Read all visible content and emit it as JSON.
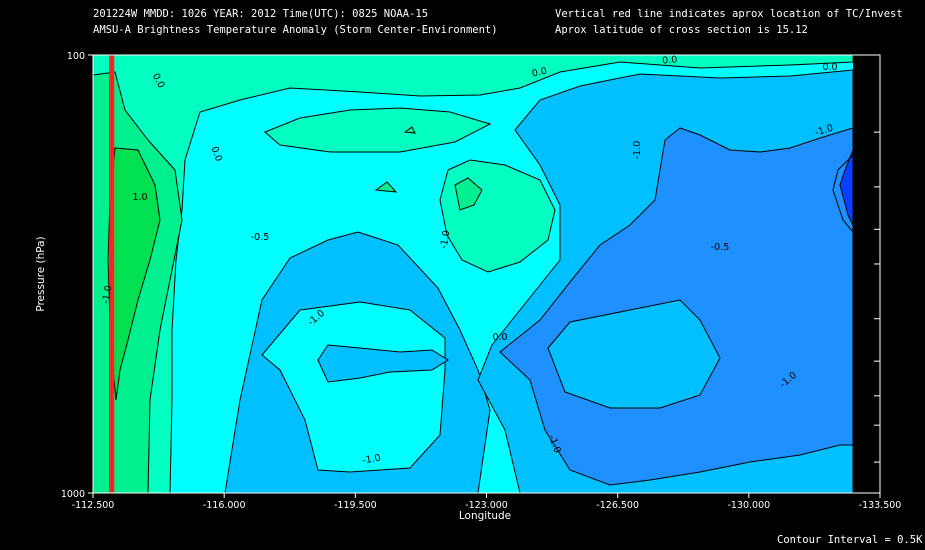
{
  "header": {
    "line1": "201224W  MMDD: 1026 YEAR: 2012 Time(UTC): 0825 NOAA-15",
    "line2": "AMSU-A Brightness Temperature Anomaly (Storm Center-Environment)",
    "right1": "Vertical red line indicates aprox location of TC/Invest",
    "right2": "Aprox latitude of cross section is 15.12"
  },
  "footer": {
    "contour_interval": "Contour Interval = 0.5K"
  },
  "chart_data": {
    "type": "heatmap",
    "xlabel": "Longitude",
    "ylabel": "Pressure (hPa)",
    "xlim": [
      -112.5,
      -133.5
    ],
    "ylim": [
      100,
      1000
    ],
    "y_scale": "log",
    "x_tick_values": [
      -112.5,
      -116.0,
      -119.5,
      -123.0,
      -126.5,
      -130.0,
      -133.5
    ],
    "x_ticks": [
      "-112.500",
      "-116.000",
      "-119.500",
      "-123.000",
      "-126.500",
      "-130.000",
      "-133.500"
    ],
    "y_ticks": [
      "100",
      "1000"
    ],
    "y_minor_ticks": [
      150,
      200,
      250,
      300,
      400,
      500,
      600,
      700,
      850
    ],
    "tc_longitude": -113.0,
    "contour_interval_k": 0.5,
    "contour_labels": [
      "0.0",
      "0.0",
      "0.0",
      "0.0",
      "0.0",
      "-1.0",
      "-1.0",
      "-1.0",
      "-1.0",
      "-1.0",
      "-1.0",
      "-1.0",
      "-1.0",
      "-0.5",
      "-0.5",
      "0.0",
      "1.0"
    ],
    "levels": [
      {
        "value": "<= -1.5",
        "color": "#0840ff"
      },
      {
        "value": "-1.5 to -1.0",
        "color": "#1e90ff"
      },
      {
        "value": "-1.0 to -0.5",
        "color": "#00c0ff"
      },
      {
        "value": "-0.5 to 0.0",
        "color": "#00ffff"
      },
      {
        "value": "0.0 to 0.5",
        "color": "#00ffc0"
      },
      {
        "value": "0.5 to 1.0",
        "color": "#00f090"
      },
      {
        "value": ">= 1.0",
        "color": "#00e050"
      }
    ],
    "colors": {
      "tc_line": "#ff2020",
      "background": "#000000"
    }
  }
}
